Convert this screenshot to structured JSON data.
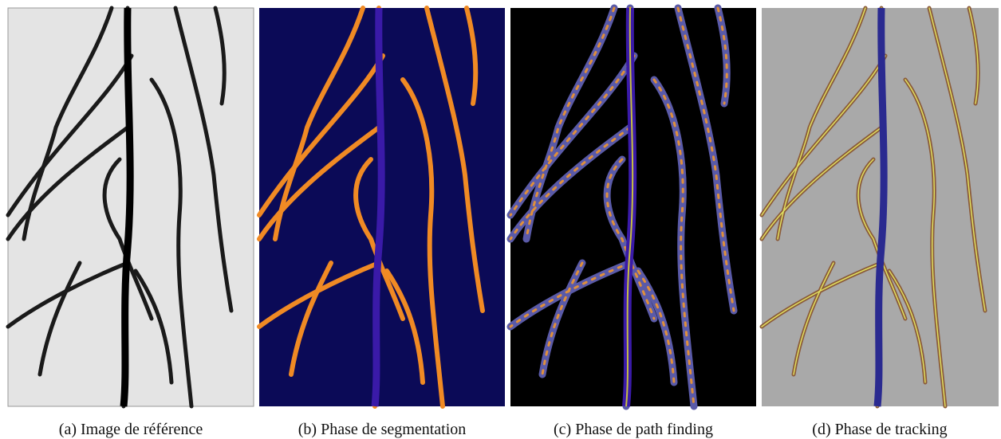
{
  "figure": {
    "panels": [
      {
        "caption": "(a) Image de référence"
      },
      {
        "caption": "(b) Phase de segmentation"
      },
      {
        "caption": "(c) Phase de path finding"
      },
      {
        "caption": "(d) Phase de tracking"
      }
    ]
  }
}
